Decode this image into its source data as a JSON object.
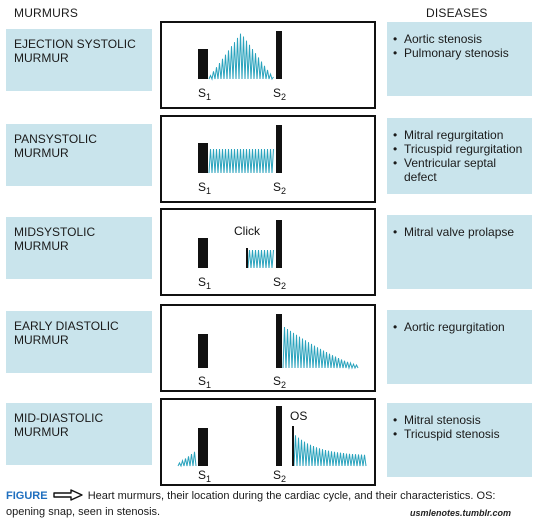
{
  "headers": {
    "murmurs": "MURMURS",
    "diseases": "DISEASES"
  },
  "colors": {
    "waveform": "#2aa3bd",
    "label_bg": "#c9e4ec",
    "figure_word": "#1f6fbf"
  },
  "rows": [
    {
      "murmur": "EJECTION SYSTOLIC MURMUR",
      "diseases": [
        "Aortic stenosis",
        "Pulmonary stenosis"
      ],
      "s1": "S1",
      "s2": "S2",
      "annotation": ""
    },
    {
      "murmur": "PANSYSTOLIC MURMUR",
      "diseases": [
        "Mitral regurgitation",
        "Tricuspid regurgitation",
        "Ventricular septal defect"
      ],
      "s1": "S1",
      "s2": "S2",
      "annotation": ""
    },
    {
      "murmur": "MIDSYSTOLIC MURMUR",
      "diseases": [
        "Mitral valve prolapse"
      ],
      "s1": "S1",
      "s2": "S2",
      "annotation": "Click"
    },
    {
      "murmur": "EARLY DIASTOLIC MURMUR",
      "diseases": [
        "Aortic regurgitation"
      ],
      "s1": "S1",
      "s2": "S2",
      "annotation": ""
    },
    {
      "murmur": "MID-DIASTOLIC MURMUR",
      "diseases": [
        "Mitral stenosis",
        "Tricuspid stenosis"
      ],
      "s1": "S1",
      "s2": "S2",
      "annotation": "OS"
    }
  ],
  "caption": {
    "figure_word": "FIGURE",
    "text": "Heart murmurs, their location during the cardiac cycle, and their characteristics. OS: opening snap, seen in stenosis."
  },
  "watermark": "usmlenotes.tumblr.com"
}
